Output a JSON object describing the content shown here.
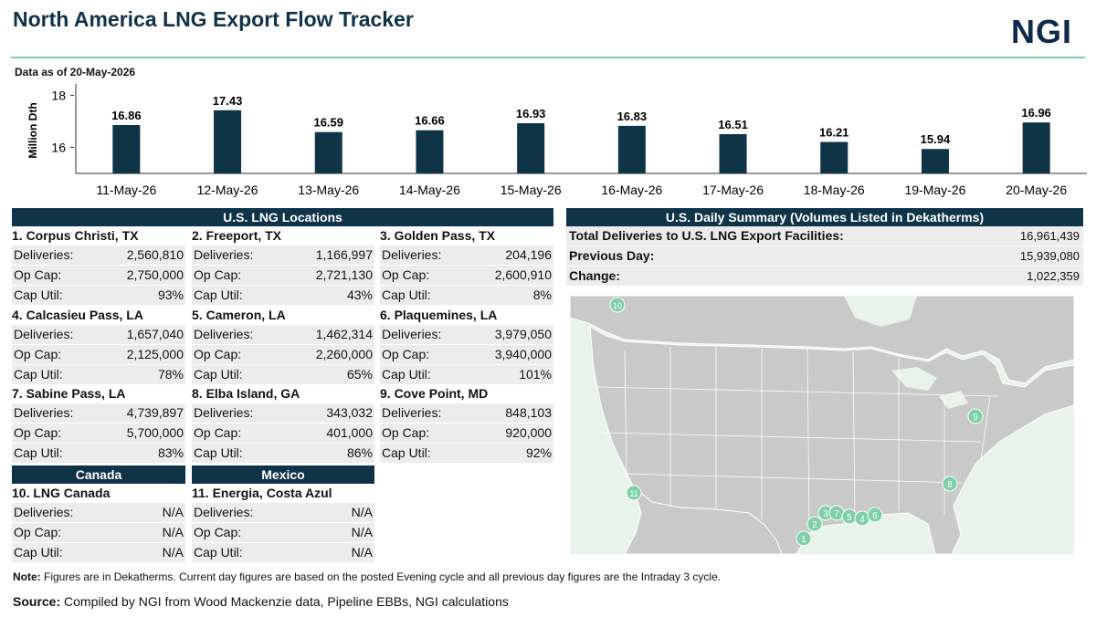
{
  "header": {
    "title": "North America LNG Export Flow Tracker",
    "logo": "NGI",
    "as_of": "Data as of 20-May-2026"
  },
  "chart_data": {
    "type": "bar",
    "categories": [
      "11-May-26",
      "12-May-26",
      "13-May-26",
      "14-May-26",
      "15-May-26",
      "16-May-26",
      "17-May-26",
      "18-May-26",
      "19-May-26",
      "20-May-26"
    ],
    "values": [
      16.86,
      17.43,
      16.59,
      16.66,
      16.93,
      16.83,
      16.51,
      16.21,
      15.94,
      16.96
    ],
    "value_labels": [
      "16.86",
      "17.43",
      "16.59",
      "16.66",
      "16.93",
      "16.83",
      "16.51",
      "16.21",
      "15.94",
      "16.96"
    ],
    "ylabel": "Million Dth",
    "yticks": [
      "16",
      "18"
    ],
    "ylim": [
      15.0,
      18.3
    ],
    "bar_color": "#0f3347",
    "grid": false
  },
  "us_locations": {
    "header": "U.S. LNG Locations",
    "labels": {
      "deliveries": "Deliveries:",
      "opcap": "Op Cap:",
      "caputil": "Cap Util:"
    },
    "items": [
      {
        "name": "1. Corpus Christi, TX",
        "deliveries": "2,560,810",
        "opcap": "2,750,000",
        "caputil": "93%"
      },
      {
        "name": "2. Freeport, TX",
        "deliveries": "1,166,997",
        "opcap": "2,721,130",
        "caputil": "43%"
      },
      {
        "name": "3. Golden Pass, TX",
        "deliveries": "204,196",
        "opcap": "2,600,910",
        "caputil": "8%"
      },
      {
        "name": "4. Calcasieu Pass, LA",
        "deliveries": "1,657,040",
        "opcap": "2,125,000",
        "caputil": "78%"
      },
      {
        "name": "5. Cameron, LA",
        "deliveries": "1,462,314",
        "opcap": "2,260,000",
        "caputil": "65%"
      },
      {
        "name": "6. Plaquemines, LA",
        "deliveries": "3,979,050",
        "opcap": "3,940,000",
        "caputil": "101%"
      },
      {
        "name": "7. Sabine Pass, LA",
        "deliveries": "4,739,897",
        "opcap": "5,700,000",
        "caputil": "83%"
      },
      {
        "name": "8. Elba Island, GA",
        "deliveries": "343,032",
        "opcap": "401,000",
        "caputil": "86%"
      },
      {
        "name": "9. Cove Point, MD",
        "deliveries": "848,103",
        "opcap": "920,000",
        "caputil": "92%"
      }
    ]
  },
  "canada": {
    "header": "Canada",
    "item": {
      "name": "10. LNG Canada",
      "deliveries": "N/A",
      "opcap": "N/A",
      "caputil": "N/A"
    }
  },
  "mexico": {
    "header": "Mexico",
    "item": {
      "name": "11. Energia, Costa Azul",
      "deliveries": "N/A",
      "opcap": "N/A",
      "caputil": "N/A"
    }
  },
  "summary": {
    "header": "U.S. Daily Summary (Volumes Listed in Dekatherms)",
    "total_label": "Total Deliveries to U.S. LNG Export Facilities:",
    "total_value": "16,961,439",
    "prev_label": "Previous Day:",
    "prev_value": "15,939,080",
    "change_label": "Change:",
    "change_value": "1,022,359"
  },
  "map": {
    "land_color": "#c9c9c9",
    "water_color": "#e8f4ea",
    "marker_color": "#7fd0a6",
    "markers": [
      "1",
      "2",
      "3",
      "7",
      "5",
      "4",
      "6",
      "8",
      "9",
      "10",
      "11"
    ]
  },
  "footer": {
    "note_label": "Note:",
    "note_text": " Figures are in Dekatherms. Current day figures are based on the posted Evening cycle and all previous day figures are the Intraday 3 cycle.",
    "source_label": "Source:",
    "source_text": "  Compiled by NGI from Wood Mackenzie data, Pipeline EBBs, NGI calculations"
  }
}
